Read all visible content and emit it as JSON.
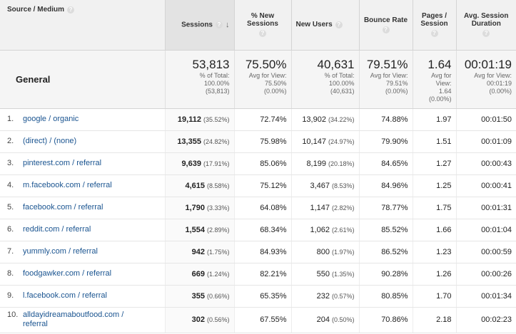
{
  "headers": {
    "source_medium": "Source / Medium",
    "sessions": "Sessions",
    "pct_new_sessions": "% New Sessions",
    "new_users": "New Users",
    "bounce_rate": "Bounce Rate",
    "pages_session": "Pages / Session",
    "avg_session_duration": "Avg. Session Duration",
    "help_glyph": "?",
    "sort_glyph": "↓"
  },
  "summary": {
    "label": "General",
    "sessions": {
      "value": "53,813",
      "l1": "% of Total:",
      "l2": "100.00%",
      "l3": "(53,813)"
    },
    "pct_new_sessions": {
      "value": "75.50%",
      "l1": "Avg for View:",
      "l2": "75.50%",
      "l3": "(0.00%)"
    },
    "new_users": {
      "value": "40,631",
      "l1": "% of Total:",
      "l2": "100.00%",
      "l3": "(40,631)"
    },
    "bounce_rate": {
      "value": "79.51%",
      "l1": "Avg for View:",
      "l2": "79.51%",
      "l3": "(0.00%)"
    },
    "pages_session": {
      "value": "1.64",
      "l1": "Avg for",
      "l2": "View:",
      "l3": "1.64",
      "l4": "(0.00%)"
    },
    "avg_session_duration": {
      "value": "00:01:19",
      "l1": "Avg for View:",
      "l2": "00:01:19",
      "l3": "(0.00%)"
    }
  },
  "rows": [
    {
      "index": "1.",
      "source": "google / organic",
      "sessions": "19,112",
      "sessions_pct": "(35.52%)",
      "pct_new": "72.74%",
      "new_users": "13,902",
      "new_users_pct": "(34.22%)",
      "bounce": "74.88%",
      "pages": "1.97",
      "duration": "00:01:50"
    },
    {
      "index": "2.",
      "source": "(direct) / (none)",
      "sessions": "13,355",
      "sessions_pct": "(24.82%)",
      "pct_new": "75.98%",
      "new_users": "10,147",
      "new_users_pct": "(24.97%)",
      "bounce": "79.90%",
      "pages": "1.51",
      "duration": "00:01:09"
    },
    {
      "index": "3.",
      "source": "pinterest.com / referral",
      "sessions": "9,639",
      "sessions_pct": "(17.91%)",
      "pct_new": "85.06%",
      "new_users": "8,199",
      "new_users_pct": "(20.18%)",
      "bounce": "84.65%",
      "pages": "1.27",
      "duration": "00:00:43"
    },
    {
      "index": "4.",
      "source": "m.facebook.com / referral",
      "sessions": "4,615",
      "sessions_pct": "(8.58%)",
      "pct_new": "75.12%",
      "new_users": "3,467",
      "new_users_pct": "(8.53%)",
      "bounce": "84.96%",
      "pages": "1.25",
      "duration": "00:00:41"
    },
    {
      "index": "5.",
      "source": "facebook.com / referral",
      "sessions": "1,790",
      "sessions_pct": "(3.33%)",
      "pct_new": "64.08%",
      "new_users": "1,147",
      "new_users_pct": "(2.82%)",
      "bounce": "78.77%",
      "pages": "1.75",
      "duration": "00:01:31"
    },
    {
      "index": "6.",
      "source": "reddit.com / referral",
      "sessions": "1,554",
      "sessions_pct": "(2.89%)",
      "pct_new": "68.34%",
      "new_users": "1,062",
      "new_users_pct": "(2.61%)",
      "bounce": "85.52%",
      "pages": "1.66",
      "duration": "00:01:04"
    },
    {
      "index": "7.",
      "source": "yummly.com / referral",
      "sessions": "942",
      "sessions_pct": "(1.75%)",
      "pct_new": "84.93%",
      "new_users": "800",
      "new_users_pct": "(1.97%)",
      "bounce": "86.52%",
      "pages": "1.23",
      "duration": "00:00:59"
    },
    {
      "index": "8.",
      "source": "foodgawker.com / referral",
      "sessions": "669",
      "sessions_pct": "(1.24%)",
      "pct_new": "82.21%",
      "new_users": "550",
      "new_users_pct": "(1.35%)",
      "bounce": "90.28%",
      "pages": "1.26",
      "duration": "00:00:26"
    },
    {
      "index": "9.",
      "source": "l.facebook.com / referral",
      "sessions": "355",
      "sessions_pct": "(0.66%)",
      "pct_new": "65.35%",
      "new_users": "232",
      "new_users_pct": "(0.57%)",
      "bounce": "80.85%",
      "pages": "1.70",
      "duration": "00:01:34"
    },
    {
      "index": "10.",
      "source": "alldayidreamaboutfood.com / referral",
      "sessions": "302",
      "sessions_pct": "(0.56%)",
      "pct_new": "67.55%",
      "new_users": "204",
      "new_users_pct": "(0.50%)",
      "bounce": "70.86%",
      "pages": "2.18",
      "duration": "00:02:23"
    }
  ]
}
